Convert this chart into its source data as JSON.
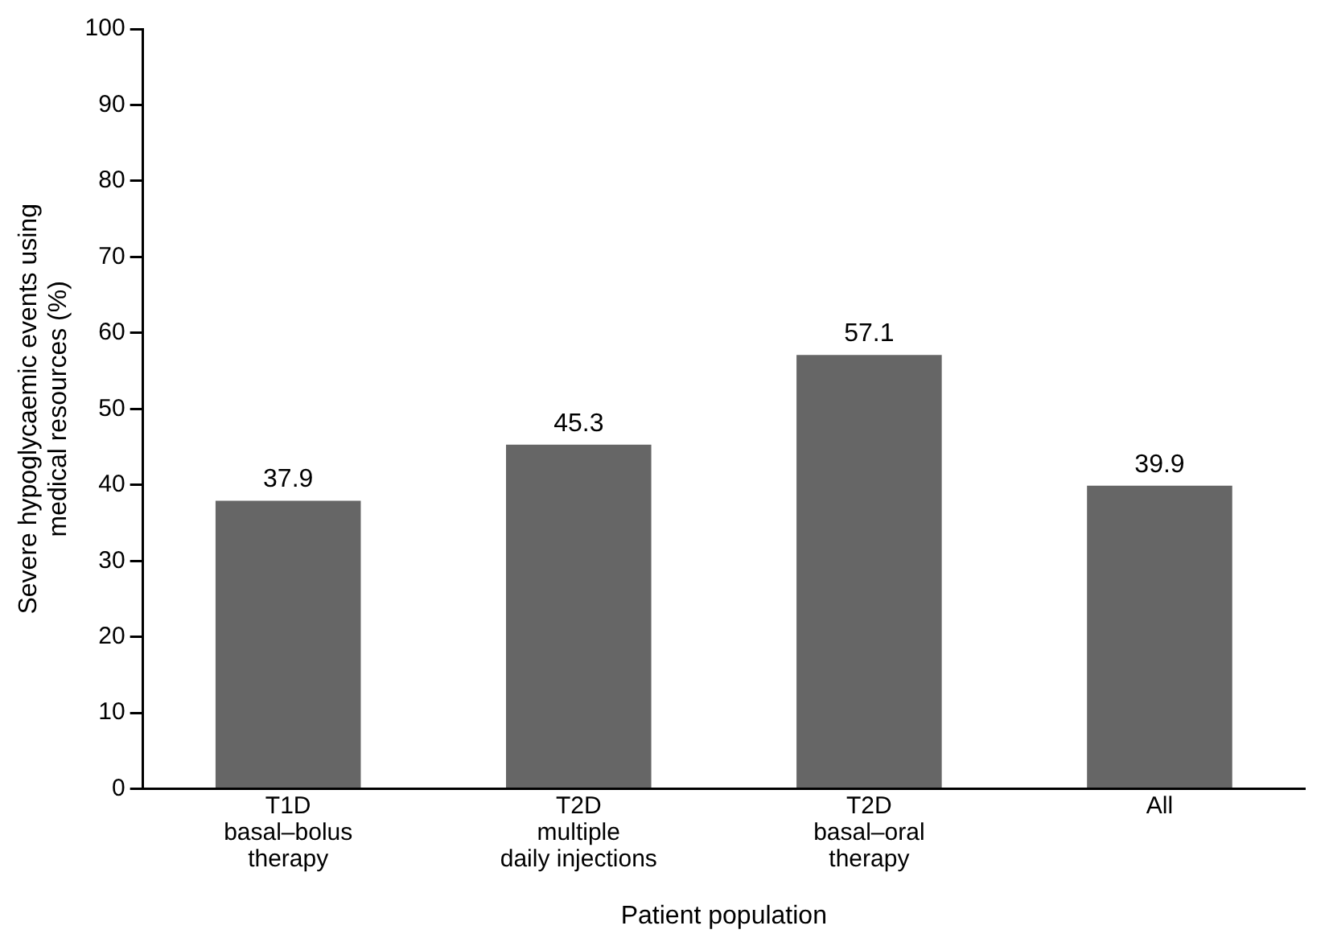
{
  "chart_data": {
    "type": "bar",
    "categories": [
      "T1D\nbasal–bolus\ntherapy",
      "T2D\nmultiple\ndaily injections",
      "T2D\nbasal–oral\ntherapy",
      "All"
    ],
    "values": [
      37.9,
      45.3,
      57.1,
      39.9
    ],
    "color": "#666666",
    "xlabel": "Patient population",
    "ylabel": "Severe hypoglycaemic events using\nmedical resources (%)",
    "ylim": [
      0,
      100
    ],
    "yticks": [
      0,
      10,
      20,
      30,
      40,
      50,
      60,
      70,
      80,
      90,
      100
    ],
    "grid": false,
    "legend": false,
    "data_labels": true
  }
}
